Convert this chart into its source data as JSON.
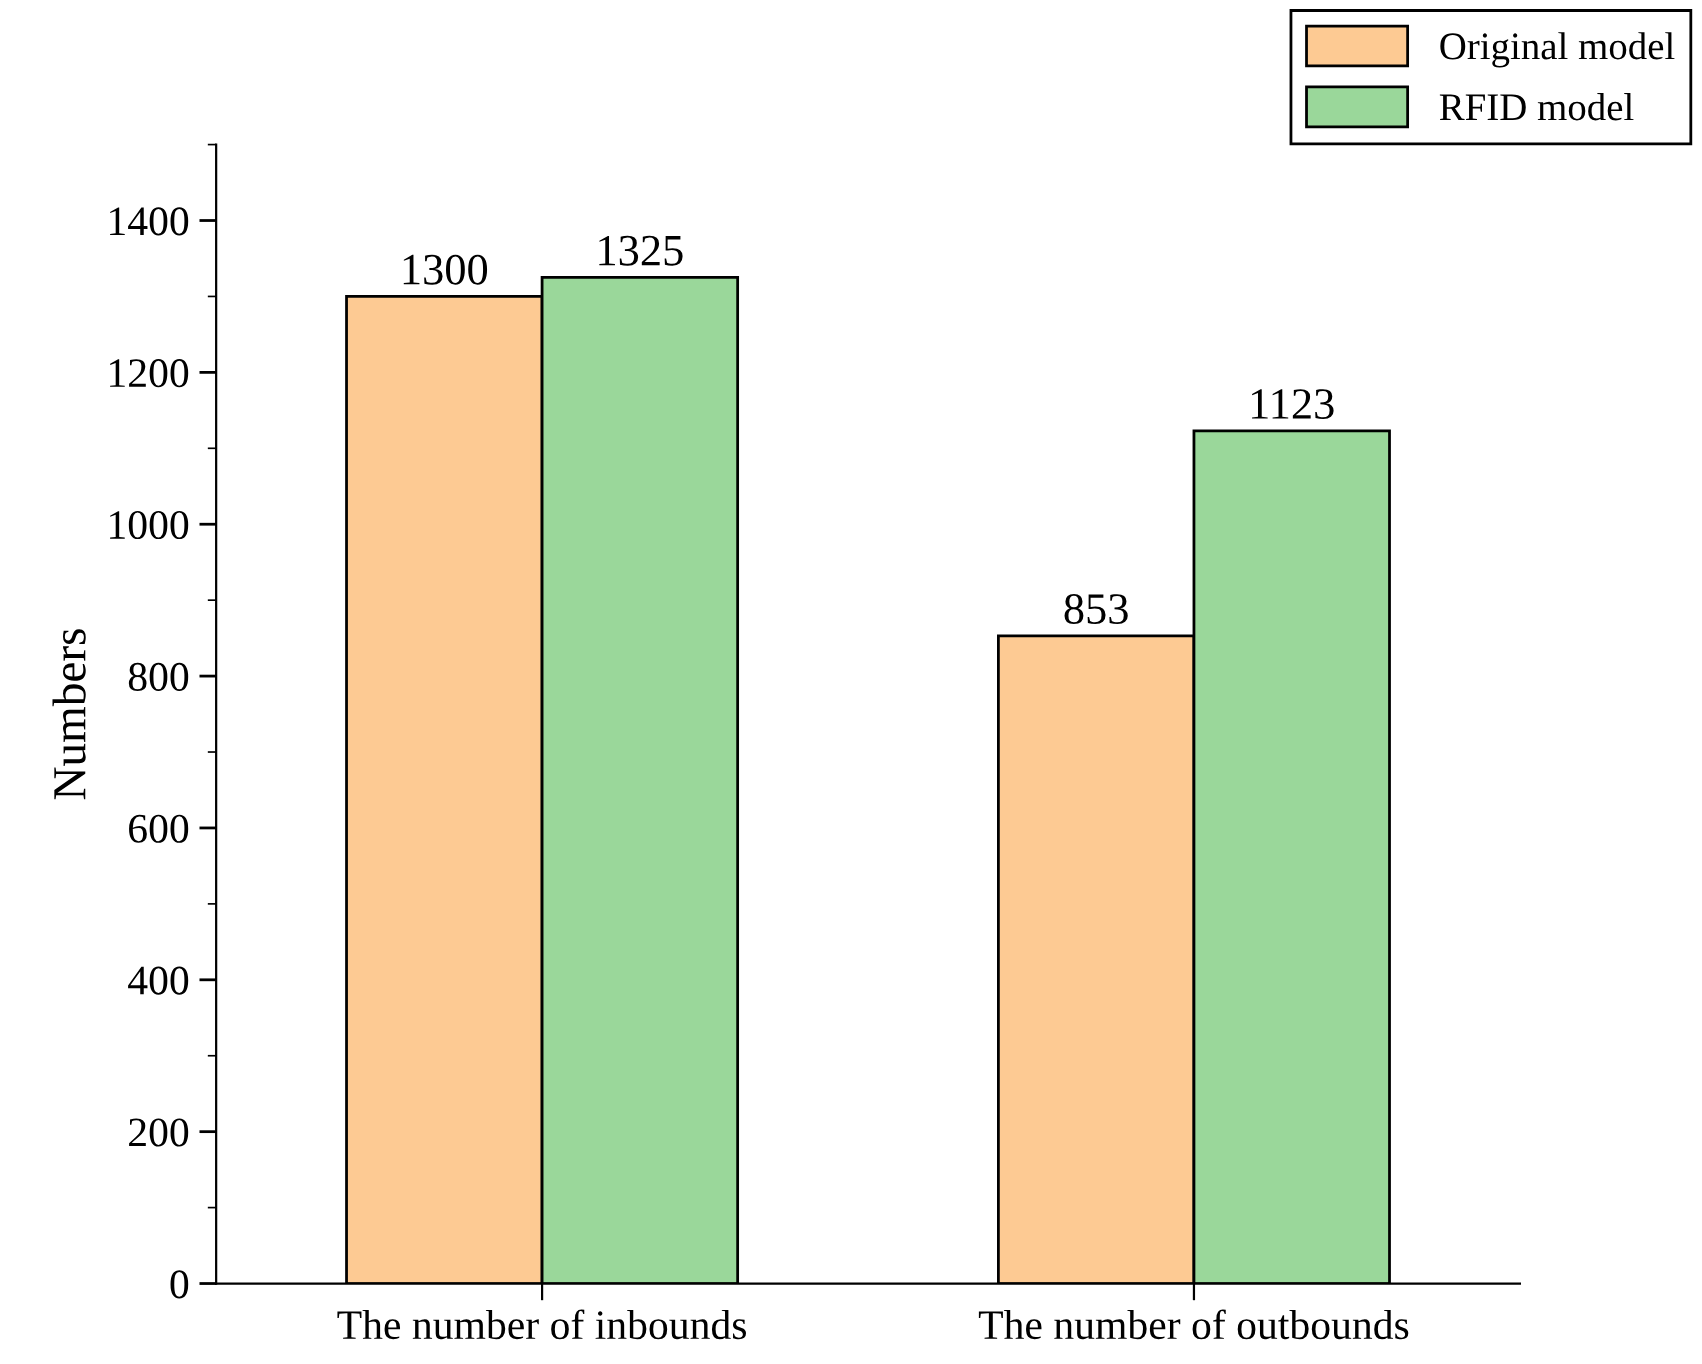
{
  "chart_data": {
    "type": "bar",
    "ylabel": "Numbers",
    "categories": [
      "The number of inbounds",
      "The number of outbounds"
    ],
    "series": [
      {
        "name": "Original model",
        "color": "#fdca93",
        "values": [
          1300,
          853
        ]
      },
      {
        "name": "RFID model",
        "color": "#9ad79a",
        "values": [
          1325,
          1123
        ]
      }
    ],
    "ylim": [
      0,
      1500
    ],
    "yticks": [
      0,
      200,
      400,
      600,
      800,
      1000,
      1200,
      1400
    ],
    "data_labels": true,
    "legend": "top right",
    "grid": false
  }
}
